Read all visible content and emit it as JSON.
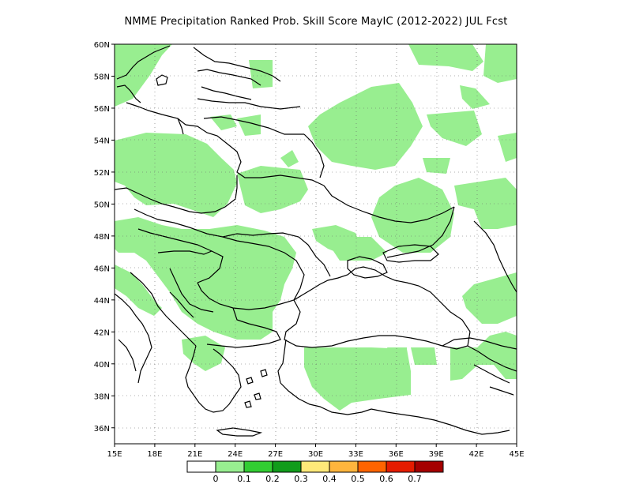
{
  "title": "NMME  Precipitation Ranked Prob. Skill Score MayIC (2012-2022) JUL Fcst",
  "map": {
    "lon_range": [
      15,
      45
    ],
    "lat_range": [
      35,
      60
    ],
    "lat_ticks": [
      "36N",
      "38N",
      "40N",
      "42N",
      "44N",
      "46N",
      "48N",
      "50N",
      "52N",
      "54N",
      "56N",
      "58N",
      "60N"
    ],
    "lat_values": [
      36,
      38,
      40,
      42,
      44,
      46,
      48,
      50,
      52,
      54,
      56,
      58,
      60
    ],
    "lon_ticks": [
      "15E",
      "18E",
      "21E",
      "24E",
      "27E",
      "30E",
      "33E",
      "36E",
      "39E",
      "42E",
      "45E"
    ],
    "lon_values": [
      15,
      18,
      21,
      24,
      27,
      30,
      33,
      36,
      39,
      42,
      45
    ],
    "fill_color_0_0.1": "#98ee90",
    "grid": "dotted"
  },
  "colorbar": {
    "labels": [
      "0",
      "0.1",
      "0.2",
      "0.3",
      "0.4",
      "0.5",
      "0.6",
      "0.7"
    ],
    "colors": [
      "#ffffff",
      "#98ee90",
      "#32cd32",
      "#119c1b",
      "#ffe979",
      "#ffb53d",
      "#ff6400",
      "#e51c00",
      "#a50000"
    ]
  }
}
